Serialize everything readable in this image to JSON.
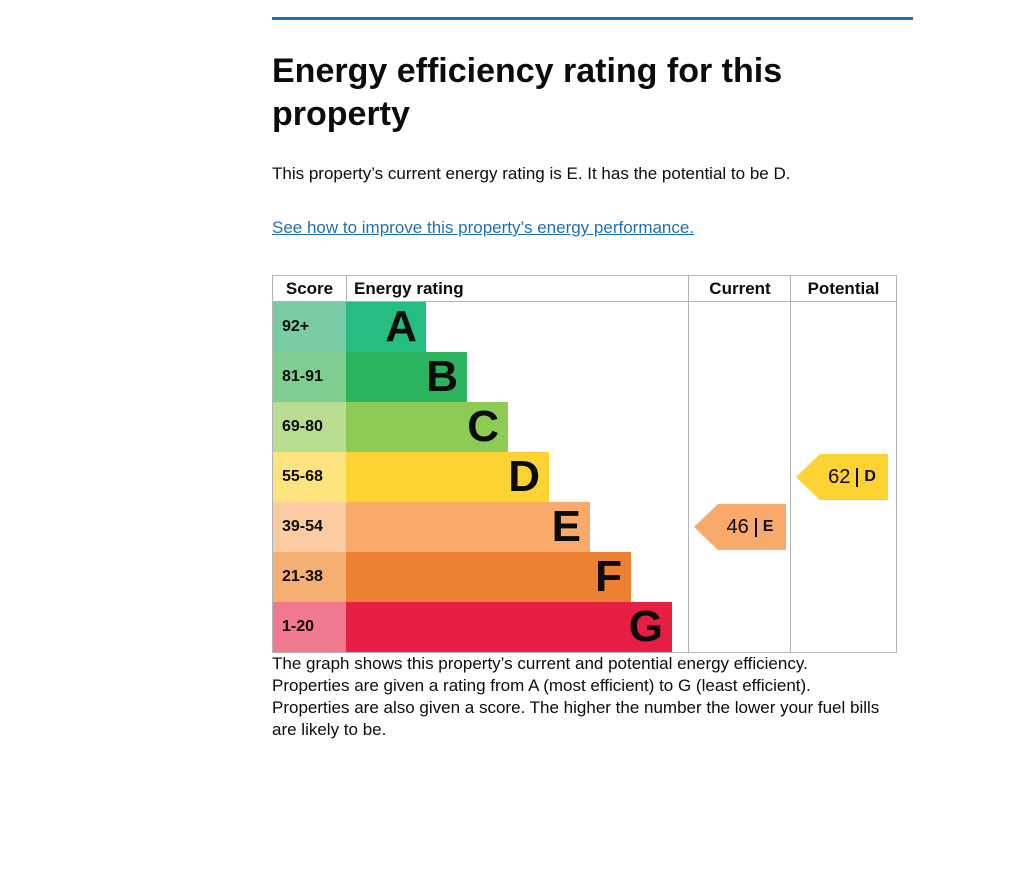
{
  "page": {
    "title": "Energy efficiency rating for this property",
    "intro": "This property’s current energy rating is E. It has the potential to be D.",
    "link_text": "See how to improve this property’s energy performance.",
    "footer_paragraphs": [
      "The graph shows this property’s current and potential energy efficiency.",
      "Properties are given a rating from A (most efficient) to G (least efficient).",
      "Properties are also given a score. The higher the number the lower your fuel bills are likely to be."
    ]
  },
  "colors": {
    "accent_blue": "#1d70b8",
    "text": "#0b0c0c",
    "chart_border": "#b1b4b6"
  },
  "chart_data": {
    "type": "table",
    "title": "Energy efficiency rating chart",
    "columns": [
      "Score",
      "Energy rating",
      "Current",
      "Potential"
    ],
    "bands": [
      {
        "letter": "A",
        "score_range": "92+",
        "bar_color": "#25bd82",
        "score_color": "#79cba3"
      },
      {
        "letter": "B",
        "score_range": "81-91",
        "bar_color": "#2cb35e",
        "score_color": "#80cd92"
      },
      {
        "letter": "C",
        "score_range": "69-80",
        "bar_color": "#8dcb55",
        "score_color": "#b8dd90"
      },
      {
        "letter": "D",
        "score_range": "55-68",
        "bar_color": "#fdd233",
        "score_color": "#fde47e"
      },
      {
        "letter": "E",
        "score_range": "39-54",
        "bar_color": "#f9aa6a",
        "score_color": "#fbcba1"
      },
      {
        "letter": "F",
        "score_range": "21-38",
        "bar_color": "#ed8133",
        "score_color": "#f3b072"
      },
      {
        "letter": "G",
        "score_range": "1-20",
        "bar_color": "#e71f45",
        "score_color": "#f0798f"
      }
    ],
    "current": {
      "score": "46",
      "band": "E",
      "color": "#f9aa6a"
    },
    "potential": {
      "score": "62",
      "band": "D",
      "color": "#fdd233"
    }
  }
}
